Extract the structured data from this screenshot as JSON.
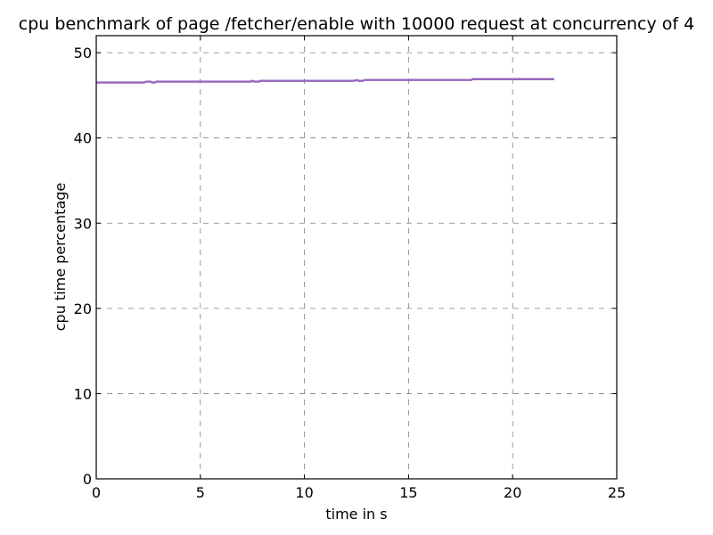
{
  "chart_data": {
    "type": "line",
    "title": "cpu benchmark of page /fetcher/enable with 10000 request at concurrency of 4",
    "xlabel": "time in s",
    "ylabel": "cpu time percentage",
    "xlim": [
      0,
      25
    ],
    "ylim": [
      0,
      52
    ],
    "xticks": [
      "0",
      "5",
      "10",
      "15",
      "20",
      "25"
    ],
    "yticks": [
      "0",
      "10",
      "20",
      "30",
      "40",
      "50"
    ],
    "grid": true,
    "series": [
      {
        "color": "#9467bd",
        "x": [
          0,
          2.3,
          2.4,
          2.6,
          2.7,
          2.8,
          2.9,
          3.0,
          7.4,
          7.5,
          7.6,
          7.8,
          7.9,
          12.4,
          12.5,
          12.6,
          12.8,
          12.9,
          18.0,
          18.1,
          22.0
        ],
        "y": [
          46.5,
          46.5,
          46.6,
          46.6,
          46.5,
          46.5,
          46.6,
          46.6,
          46.6,
          46.7,
          46.6,
          46.6,
          46.7,
          46.7,
          46.8,
          46.7,
          46.7,
          46.8,
          46.8,
          46.9,
          46.9
        ]
      }
    ]
  }
}
